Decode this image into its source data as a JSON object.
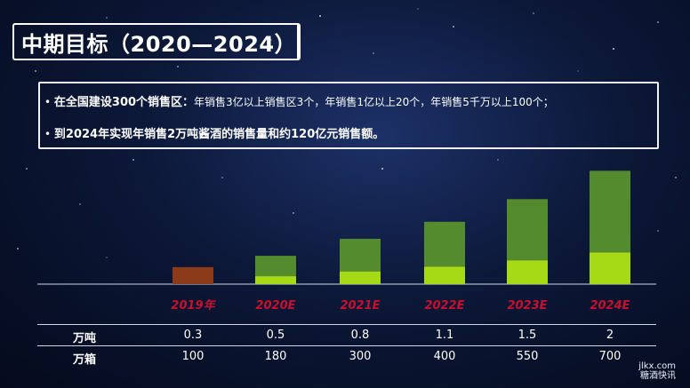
{
  "title": "中期目标（2020—2024）",
  "info": {
    "line1_bold": "在全国建设300个销售区：",
    "line1_rest": "年销售3亿以上销售区3个，年销售1亿以上20个，年销售5千万以上100个；",
    "line2_bold": "到2024年实现年销售2万吨酱酒的销售量和约120亿元销售额。"
  },
  "chart_data": {
    "type": "bar",
    "categories": [
      "2019年",
      "2020E",
      "2021E",
      "2022E",
      "2023E",
      "2024E"
    ],
    "series": [
      {
        "values": [
          0.3,
          0.5,
          0.8,
          1.1,
          1.5,
          2
        ]
      }
    ],
    "ylim": [
      0,
      2.1
    ]
  },
  "table": {
    "rows": [
      {
        "label": "万吨",
        "values": [
          "0.3",
          "0.5",
          "0.8",
          "1.1",
          "1.5",
          "2"
        ]
      },
      {
        "label": "万箱",
        "values": [
          "100",
          "180",
          "300",
          "400",
          "550",
          "700"
        ]
      }
    ]
  },
  "colors": {
    "bar_2019": "#8b3a1a",
    "bar_upper": "#558b2f",
    "bar_lower": "#a6d916",
    "category_label": "#c8102e"
  },
  "watermark": {
    "line1": "jlkx.com",
    "line2": "糖酒快讯"
  }
}
